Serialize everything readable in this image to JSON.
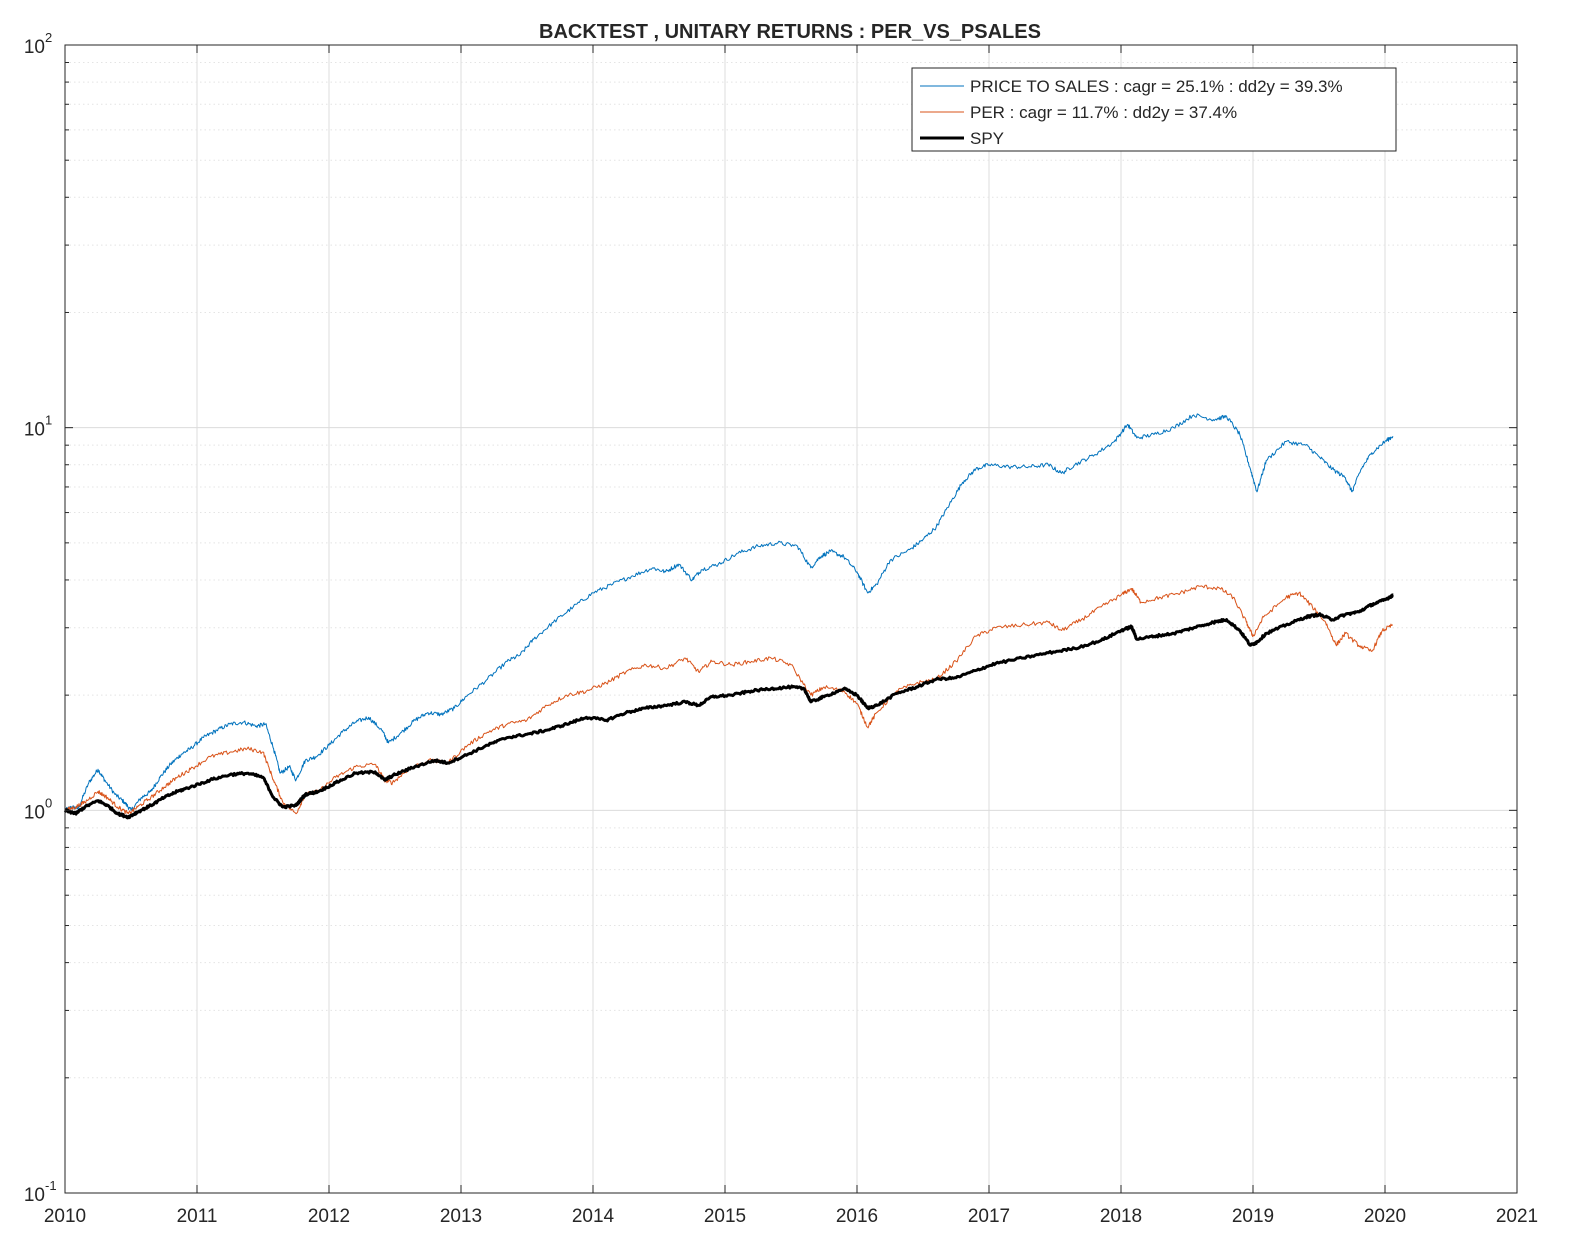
{
  "chart_data": {
    "type": "line",
    "title": "BACKTEST , UNITARY RETURNS : PER_VS_PSALES",
    "xlabel": "",
    "ylabel": "",
    "xlim": [
      2010,
      2021
    ],
    "ylim": [
      0.1,
      100
    ],
    "yscale": "log",
    "grid": true,
    "minor_grid": true,
    "legend_position": "top-right",
    "x_ticks": [
      "2010",
      "2011",
      "2012",
      "2013",
      "2014",
      "2015",
      "2016",
      "2017",
      "2018",
      "2019",
      "2020",
      "2021"
    ],
    "y_ticks": [
      {
        "value": 0.1,
        "base": "10",
        "exp": "-1"
      },
      {
        "value": 1,
        "base": "10",
        "exp": "0"
      },
      {
        "value": 10,
        "base": "10",
        "exp": "1"
      },
      {
        "value": 100,
        "base": "10",
        "exp": "2"
      }
    ],
    "series": [
      {
        "name": "PRICE TO SALES : cagr = 25.1% : dd2y = 39.3%",
        "color": "#0072BD",
        "line_width": 1,
        "points": [
          [
            2010.0,
            1.0
          ],
          [
            2010.05,
            1.02
          ],
          [
            2010.1,
            1.01
          ],
          [
            2010.18,
            1.18
          ],
          [
            2010.25,
            1.28
          ],
          [
            2010.3,
            1.2
          ],
          [
            2010.38,
            1.1
          ],
          [
            2010.45,
            1.05
          ],
          [
            2010.5,
            1.0
          ],
          [
            2010.58,
            1.08
          ],
          [
            2010.65,
            1.12
          ],
          [
            2010.72,
            1.22
          ],
          [
            2010.8,
            1.32
          ],
          [
            2010.88,
            1.4
          ],
          [
            2010.95,
            1.45
          ],
          [
            2011.05,
            1.55
          ],
          [
            2011.15,
            1.62
          ],
          [
            2011.25,
            1.68
          ],
          [
            2011.35,
            1.7
          ],
          [
            2011.45,
            1.66
          ],
          [
            2011.52,
            1.68
          ],
          [
            2011.58,
            1.45
          ],
          [
            2011.63,
            1.25
          ],
          [
            2011.7,
            1.3
          ],
          [
            2011.75,
            1.2
          ],
          [
            2011.82,
            1.35
          ],
          [
            2011.9,
            1.38
          ],
          [
            2012.0,
            1.48
          ],
          [
            2012.1,
            1.6
          ],
          [
            2012.2,
            1.7
          ],
          [
            2012.3,
            1.75
          ],
          [
            2012.4,
            1.62
          ],
          [
            2012.45,
            1.5
          ],
          [
            2012.55,
            1.6
          ],
          [
            2012.65,
            1.72
          ],
          [
            2012.75,
            1.8
          ],
          [
            2012.85,
            1.78
          ],
          [
            2012.95,
            1.85
          ],
          [
            2013.05,
            2.0
          ],
          [
            2013.2,
            2.2
          ],
          [
            2013.35,
            2.45
          ],
          [
            2013.45,
            2.55
          ],
          [
            2013.55,
            2.8
          ],
          [
            2013.7,
            3.1
          ],
          [
            2013.85,
            3.4
          ],
          [
            2014.0,
            3.7
          ],
          [
            2014.15,
            3.9
          ],
          [
            2014.3,
            4.1
          ],
          [
            2014.45,
            4.3
          ],
          [
            2014.55,
            4.2
          ],
          [
            2014.65,
            4.4
          ],
          [
            2014.75,
            4.0
          ],
          [
            2014.82,
            4.25
          ],
          [
            2014.95,
            4.4
          ],
          [
            2015.1,
            4.7
          ],
          [
            2015.25,
            4.9
          ],
          [
            2015.4,
            5.0
          ],
          [
            2015.55,
            4.9
          ],
          [
            2015.65,
            4.3
          ],
          [
            2015.72,
            4.6
          ],
          [
            2015.8,
            4.75
          ],
          [
            2015.9,
            4.6
          ],
          [
            2016.0,
            4.2
          ],
          [
            2016.08,
            3.7
          ],
          [
            2016.15,
            3.9
          ],
          [
            2016.25,
            4.5
          ],
          [
            2016.4,
            4.8
          ],
          [
            2016.5,
            5.1
          ],
          [
            2016.6,
            5.5
          ],
          [
            2016.7,
            6.3
          ],
          [
            2016.8,
            7.2
          ],
          [
            2016.9,
            7.8
          ],
          [
            2017.0,
            8.0
          ],
          [
            2017.15,
            7.9
          ],
          [
            2017.3,
            7.9
          ],
          [
            2017.45,
            8.0
          ],
          [
            2017.55,
            7.6
          ],
          [
            2017.65,
            8.0
          ],
          [
            2017.8,
            8.5
          ],
          [
            2017.95,
            9.2
          ],
          [
            2018.05,
            10.2
          ],
          [
            2018.12,
            9.4
          ],
          [
            2018.25,
            9.6
          ],
          [
            2018.4,
            10.0
          ],
          [
            2018.55,
            10.8
          ],
          [
            2018.7,
            10.5
          ],
          [
            2018.8,
            10.7
          ],
          [
            2018.9,
            9.6
          ],
          [
            2018.98,
            7.8
          ],
          [
            2019.03,
            6.8
          ],
          [
            2019.1,
            8.2
          ],
          [
            2019.25,
            9.2
          ],
          [
            2019.4,
            9.0
          ],
          [
            2019.5,
            8.4
          ],
          [
            2019.6,
            7.8
          ],
          [
            2019.7,
            7.4
          ],
          [
            2019.75,
            6.8
          ],
          [
            2019.82,
            7.8
          ],
          [
            2019.9,
            8.6
          ],
          [
            2020.0,
            9.2
          ],
          [
            2020.06,
            9.5
          ]
        ]
      },
      {
        "name": "PER : cagr = 11.7% : dd2y = 37.4%",
        "color": "#D95319",
        "line_width": 1,
        "points": [
          [
            2010.0,
            1.0
          ],
          [
            2010.08,
            1.02
          ],
          [
            2010.15,
            1.05
          ],
          [
            2010.25,
            1.12
          ],
          [
            2010.32,
            1.08
          ],
          [
            2010.4,
            1.02
          ],
          [
            2010.48,
            0.98
          ],
          [
            2010.55,
            1.02
          ],
          [
            2010.65,
            1.08
          ],
          [
            2010.75,
            1.15
          ],
          [
            2010.85,
            1.22
          ],
          [
            2010.95,
            1.28
          ],
          [
            2011.1,
            1.38
          ],
          [
            2011.25,
            1.42
          ],
          [
            2011.38,
            1.45
          ],
          [
            2011.5,
            1.42
          ],
          [
            2011.58,
            1.2
          ],
          [
            2011.65,
            1.05
          ],
          [
            2011.75,
            0.98
          ],
          [
            2011.82,
            1.1
          ],
          [
            2011.92,
            1.12
          ],
          [
            2012.05,
            1.22
          ],
          [
            2012.2,
            1.3
          ],
          [
            2012.35,
            1.32
          ],
          [
            2012.42,
            1.2
          ],
          [
            2012.48,
            1.18
          ],
          [
            2012.6,
            1.28
          ],
          [
            2012.75,
            1.35
          ],
          [
            2012.9,
            1.33
          ],
          [
            2013.05,
            1.48
          ],
          [
            2013.2,
            1.6
          ],
          [
            2013.35,
            1.68
          ],
          [
            2013.5,
            1.72
          ],
          [
            2013.65,
            1.88
          ],
          [
            2013.8,
            2.0
          ],
          [
            2013.95,
            2.05
          ],
          [
            2014.1,
            2.15
          ],
          [
            2014.25,
            2.3
          ],
          [
            2014.4,
            2.4
          ],
          [
            2014.55,
            2.35
          ],
          [
            2014.7,
            2.5
          ],
          [
            2014.8,
            2.3
          ],
          [
            2014.9,
            2.45
          ],
          [
            2015.05,
            2.4
          ],
          [
            2015.2,
            2.45
          ],
          [
            2015.35,
            2.5
          ],
          [
            2015.5,
            2.4
          ],
          [
            2015.65,
            2.0
          ],
          [
            2015.75,
            2.1
          ],
          [
            2015.9,
            2.05
          ],
          [
            2016.0,
            1.9
          ],
          [
            2016.08,
            1.65
          ],
          [
            2016.15,
            1.8
          ],
          [
            2016.3,
            2.05
          ],
          [
            2016.45,
            2.15
          ],
          [
            2016.6,
            2.2
          ],
          [
            2016.75,
            2.45
          ],
          [
            2016.9,
            2.85
          ],
          [
            2017.05,
            3.0
          ],
          [
            2017.25,
            3.05
          ],
          [
            2017.45,
            3.1
          ],
          [
            2017.55,
            2.95
          ],
          [
            2017.7,
            3.15
          ],
          [
            2017.85,
            3.4
          ],
          [
            2018.0,
            3.65
          ],
          [
            2018.08,
            3.8
          ],
          [
            2018.15,
            3.5
          ],
          [
            2018.3,
            3.6
          ],
          [
            2018.45,
            3.7
          ],
          [
            2018.6,
            3.85
          ],
          [
            2018.75,
            3.8
          ],
          [
            2018.85,
            3.6
          ],
          [
            2018.95,
            3.1
          ],
          [
            2019.0,
            2.85
          ],
          [
            2019.08,
            3.2
          ],
          [
            2019.25,
            3.6
          ],
          [
            2019.35,
            3.7
          ],
          [
            2019.45,
            3.4
          ],
          [
            2019.55,
            3.1
          ],
          [
            2019.63,
            2.7
          ],
          [
            2019.7,
            2.9
          ],
          [
            2019.8,
            2.7
          ],
          [
            2019.9,
            2.6
          ],
          [
            2019.98,
            2.95
          ],
          [
            2020.06,
            3.05
          ]
        ]
      },
      {
        "name": "SPY",
        "color": "#000000",
        "line_width": 3,
        "points": [
          [
            2010.0,
            1.0
          ],
          [
            2010.08,
            0.98
          ],
          [
            2010.15,
            1.02
          ],
          [
            2010.25,
            1.06
          ],
          [
            2010.32,
            1.03
          ],
          [
            2010.4,
            0.98
          ],
          [
            2010.48,
            0.96
          ],
          [
            2010.55,
            0.99
          ],
          [
            2010.65,
            1.03
          ],
          [
            2010.75,
            1.08
          ],
          [
            2010.85,
            1.12
          ],
          [
            2010.95,
            1.15
          ],
          [
            2011.1,
            1.2
          ],
          [
            2011.25,
            1.24
          ],
          [
            2011.38,
            1.25
          ],
          [
            2011.5,
            1.22
          ],
          [
            2011.58,
            1.08
          ],
          [
            2011.65,
            1.02
          ],
          [
            2011.75,
            1.03
          ],
          [
            2011.82,
            1.1
          ],
          [
            2011.92,
            1.12
          ],
          [
            2012.05,
            1.18
          ],
          [
            2012.2,
            1.25
          ],
          [
            2012.35,
            1.26
          ],
          [
            2012.42,
            1.2
          ],
          [
            2012.5,
            1.24
          ],
          [
            2012.65,
            1.3
          ],
          [
            2012.8,
            1.35
          ],
          [
            2012.9,
            1.33
          ],
          [
            2013.05,
            1.4
          ],
          [
            2013.2,
            1.48
          ],
          [
            2013.35,
            1.55
          ],
          [
            2013.5,
            1.58
          ],
          [
            2013.65,
            1.62
          ],
          [
            2013.8,
            1.68
          ],
          [
            2013.95,
            1.75
          ],
          [
            2014.1,
            1.72
          ],
          [
            2014.25,
            1.8
          ],
          [
            2014.4,
            1.85
          ],
          [
            2014.55,
            1.88
          ],
          [
            2014.7,
            1.92
          ],
          [
            2014.8,
            1.88
          ],
          [
            2014.9,
            1.98
          ],
          [
            2015.05,
            2.0
          ],
          [
            2015.2,
            2.05
          ],
          [
            2015.35,
            2.08
          ],
          [
            2015.5,
            2.1
          ],
          [
            2015.6,
            2.08
          ],
          [
            2015.65,
            1.92
          ],
          [
            2015.75,
            1.98
          ],
          [
            2015.9,
            2.08
          ],
          [
            2016.0,
            2.0
          ],
          [
            2016.08,
            1.85
          ],
          [
            2016.15,
            1.88
          ],
          [
            2016.3,
            2.02
          ],
          [
            2016.45,
            2.1
          ],
          [
            2016.6,
            2.2
          ],
          [
            2016.75,
            2.22
          ],
          [
            2016.9,
            2.32
          ],
          [
            2017.05,
            2.42
          ],
          [
            2017.25,
            2.5
          ],
          [
            2017.45,
            2.58
          ],
          [
            2017.65,
            2.65
          ],
          [
            2017.85,
            2.78
          ],
          [
            2018.0,
            2.95
          ],
          [
            2018.08,
            3.02
          ],
          [
            2018.12,
            2.8
          ],
          [
            2018.25,
            2.85
          ],
          [
            2018.4,
            2.9
          ],
          [
            2018.55,
            3.0
          ],
          [
            2018.7,
            3.1
          ],
          [
            2018.8,
            3.15
          ],
          [
            2018.9,
            2.95
          ],
          [
            2018.98,
            2.7
          ],
          [
            2019.03,
            2.75
          ],
          [
            2019.1,
            2.9
          ],
          [
            2019.25,
            3.05
          ],
          [
            2019.4,
            3.2
          ],
          [
            2019.5,
            3.25
          ],
          [
            2019.6,
            3.15
          ],
          [
            2019.7,
            3.25
          ],
          [
            2019.8,
            3.3
          ],
          [
            2019.9,
            3.45
          ],
          [
            2020.0,
            3.55
          ],
          [
            2020.06,
            3.65
          ]
        ]
      }
    ]
  }
}
